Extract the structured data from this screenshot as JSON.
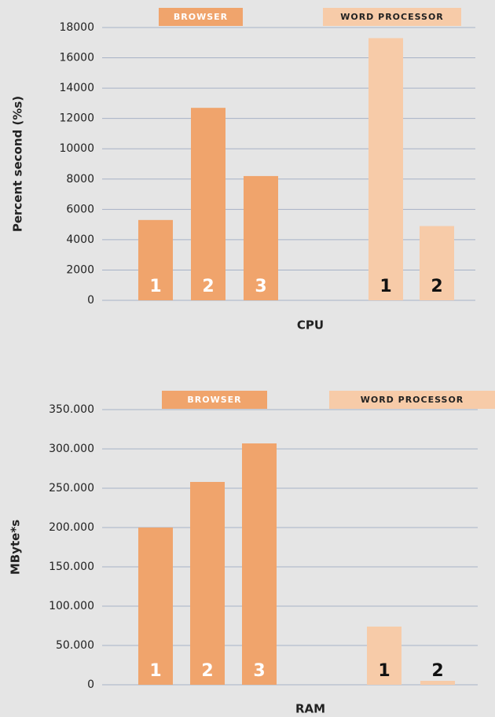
{
  "chart_data": [
    {
      "type": "bar",
      "xlabel": "CPU",
      "ylabel": "Percent second (%s)",
      "ylim": [
        0,
        18000
      ],
      "yticks": [
        0,
        2000,
        4000,
        6000,
        8000,
        10000,
        12000,
        14000,
        16000,
        18000
      ],
      "grid": true,
      "series": [
        {
          "name": "BROWSER",
          "color": "#f0a46c",
          "categories": [
            "1",
            "2",
            "3"
          ],
          "values": [
            5300,
            12700,
            8200
          ]
        },
        {
          "name": "WORD PROCESSOR",
          "color": "#f7cba8",
          "categories": [
            "1",
            "2"
          ],
          "values": [
            17300,
            4900
          ]
        }
      ]
    },
    {
      "type": "bar",
      "xlabel": "RAM",
      "ylabel": "MByte*s",
      "ylim": [
        0,
        350000
      ],
      "yticks": [
        0,
        {
          "value": 50000,
          "label": "50.000"
        },
        {
          "value": 100000,
          "label": "100.000"
        },
        {
          "value": 150000,
          "label": "150.000"
        },
        {
          "value": 200000,
          "label": "200.000"
        },
        {
          "value": 250000,
          "label": "250.000"
        },
        {
          "value": 300000,
          "label": "300.000"
        },
        {
          "value": 350000,
          "label": "350.000"
        }
      ],
      "grid": true,
      "series": [
        {
          "name": "BROWSER",
          "color": "#f0a46c",
          "categories": [
            "1",
            "2",
            "3"
          ],
          "values": [
            200000,
            258000,
            307000
          ]
        },
        {
          "name": "WORD PROCESSOR",
          "color": "#f7cba8",
          "categories": [
            "1",
            "2"
          ],
          "values": [
            74000,
            5000
          ]
        }
      ]
    }
  ]
}
